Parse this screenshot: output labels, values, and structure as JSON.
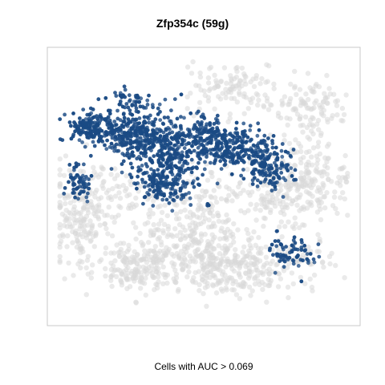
{
  "chart_data": {
    "type": "scatter",
    "title": "Zfp354c (59g)",
    "caption": "Cells with AUC > 0.069",
    "xlabel": "",
    "ylabel": "",
    "axes_shown": false,
    "grid": false,
    "legend": "none",
    "colors": {
      "inactive": "#d9d9d9",
      "active": "#1a4a84",
      "frame": "#c8c8c8"
    },
    "clusters": [
      {
        "state": "inactive",
        "cx": 0.27,
        "cy": 0.82,
        "sx": 0.07,
        "sy": 0.05,
        "n": 180
      },
      {
        "state": "inactive",
        "cx": 0.52,
        "cy": 0.8,
        "sx": 0.08,
        "sy": 0.06,
        "n": 160
      },
      {
        "state": "inactive",
        "cx": 0.08,
        "cy": 0.66,
        "sx": 0.05,
        "sy": 0.07,
        "n": 120
      },
      {
        "state": "inactive",
        "cx": 0.45,
        "cy": 0.7,
        "sx": 0.12,
        "sy": 0.05,
        "n": 160
      },
      {
        "state": "inactive",
        "cx": 0.63,
        "cy": 0.82,
        "sx": 0.06,
        "sy": 0.05,
        "n": 110
      },
      {
        "state": "inactive",
        "cx": 0.8,
        "cy": 0.8,
        "sx": 0.08,
        "sy": 0.05,
        "n": 90
      },
      {
        "state": "inactive",
        "cx": 0.86,
        "cy": 0.46,
        "sx": 0.08,
        "sy": 0.08,
        "n": 160
      },
      {
        "state": "inactive",
        "cx": 0.76,
        "cy": 0.52,
        "sx": 0.07,
        "sy": 0.06,
        "n": 120
      },
      {
        "state": "inactive",
        "cx": 0.86,
        "cy": 0.2,
        "sx": 0.06,
        "sy": 0.06,
        "n": 110
      },
      {
        "state": "inactive",
        "cx": 0.6,
        "cy": 0.12,
        "sx": 0.08,
        "sy": 0.05,
        "n": 110
      },
      {
        "state": "inactive",
        "cx": 0.15,
        "cy": 0.52,
        "sx": 0.1,
        "sy": 0.06,
        "n": 120
      },
      {
        "state": "inactive",
        "cx": 0.5,
        "cy": 0.55,
        "sx": 0.12,
        "sy": 0.06,
        "n": 120
      },
      {
        "state": "active",
        "cx": 0.08,
        "cy": 0.48,
        "sx": 0.02,
        "sy": 0.04,
        "n": 60
      },
      {
        "state": "active",
        "cx": 0.12,
        "cy": 0.27,
        "sx": 0.04,
        "sy": 0.03,
        "n": 150
      },
      {
        "state": "active",
        "cx": 0.26,
        "cy": 0.3,
        "sx": 0.06,
        "sy": 0.04,
        "n": 260
      },
      {
        "state": "active",
        "cx": 0.38,
        "cy": 0.38,
        "sx": 0.07,
        "sy": 0.07,
        "n": 320
      },
      {
        "state": "active",
        "cx": 0.36,
        "cy": 0.5,
        "sx": 0.05,
        "sy": 0.04,
        "n": 120
      },
      {
        "state": "active",
        "cx": 0.6,
        "cy": 0.35,
        "sx": 0.06,
        "sy": 0.04,
        "n": 220
      },
      {
        "state": "active",
        "cx": 0.72,
        "cy": 0.42,
        "sx": 0.04,
        "sy": 0.04,
        "n": 140
      },
      {
        "state": "active",
        "cx": 0.5,
        "cy": 0.3,
        "sx": 0.05,
        "sy": 0.03,
        "n": 110
      },
      {
        "state": "active",
        "cx": 0.8,
        "cy": 0.76,
        "sx": 0.04,
        "sy": 0.03,
        "n": 70
      },
      {
        "state": "active",
        "cx": 0.26,
        "cy": 0.17,
        "sx": 0.06,
        "sy": 0.02,
        "n": 50
      }
    ]
  }
}
